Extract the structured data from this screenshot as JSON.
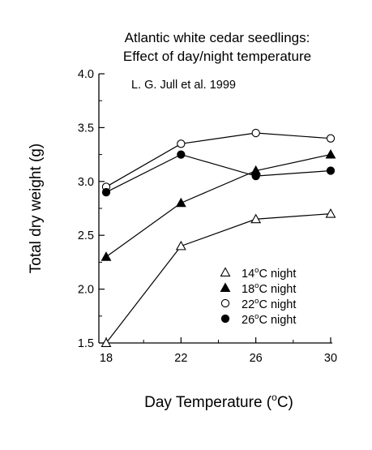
{
  "chart_data": {
    "type": "line",
    "title": "Atlantic white cedar seedlings:",
    "subtitle": "Effect of day/night temperature",
    "annotation": "L. G. Jull et al. 1999",
    "xlabel": "Day Temperature (°C)",
    "xlabel_main": "Day Temperature (",
    "xlabel_degree": "o",
    "xlabel_unit": "C)",
    "ylabel": "Total dry weight (g)",
    "x": [
      18,
      22,
      26,
      30
    ],
    "x_tick_labels": [
      "18",
      "22",
      "26",
      "30"
    ],
    "y_ticks": [
      1.5,
      2.0,
      2.5,
      3.0,
      3.5,
      4.0
    ],
    "y_tick_labels": [
      "1.5",
      "2.0",
      "2.5",
      "3.0",
      "3.5",
      "4.0"
    ],
    "xlim": [
      18,
      30
    ],
    "ylim": [
      1.5,
      4.0
    ],
    "grid": false,
    "legend_position": "lower-right",
    "series": [
      {
        "name": "14°C night",
        "label_num": "14",
        "label_unit": "C night",
        "marker": "triangle-open",
        "values": [
          1.5,
          2.4,
          2.65,
          2.7
        ]
      },
      {
        "name": "18°C night",
        "label_num": "18",
        "label_unit": "C night",
        "marker": "triangle-filled",
        "values": [
          2.3,
          2.8,
          3.1,
          3.25
        ]
      },
      {
        "name": "22°C night",
        "label_num": "22",
        "label_unit": "C night",
        "marker": "circle-open",
        "values": [
          2.95,
          3.35,
          3.45,
          3.4
        ]
      },
      {
        "name": "26°C night",
        "label_num": "26",
        "label_unit": "C night",
        "marker": "circle-filled",
        "values": [
          2.9,
          3.25,
          3.05,
          3.1
        ]
      }
    ],
    "colors": {
      "line": "#000000",
      "background": "#ffffff"
    }
  }
}
